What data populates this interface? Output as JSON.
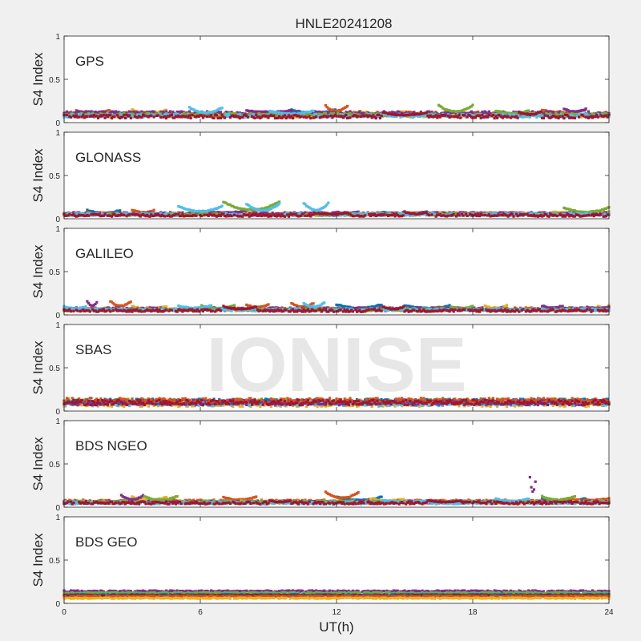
{
  "figure": {
    "title": "HNLE20241208",
    "watermark": "IONISE",
    "xlabel": "UT(h)"
  },
  "chart_data": [
    {
      "type": "scatter",
      "panel_label": "GPS",
      "ylabel": "S4 Index",
      "xlim": [
        0,
        24
      ],
      "ylim": [
        0,
        1
      ],
      "x_ticks": [
        "0",
        "6",
        "12",
        "18",
        "24"
      ],
      "y_ticks": [
        "0",
        "0.5",
        "1"
      ],
      "grid": false,
      "colors": [
        "#0072BD",
        "#D95319",
        "#EDB120",
        "#7E2F8E",
        "#77AC30",
        "#4DBEEE",
        "#A2142F"
      ],
      "series": [
        {
          "color": "#0072BD",
          "baseline": 0.09,
          "noise": 0.02,
          "arcs": [
            [
              2,
              4,
              0.13
            ],
            [
              10,
              12,
              0.15
            ]
          ]
        },
        {
          "color": "#D95319",
          "baseline": 0.1,
          "noise": 0.025,
          "arcs": [
            [
              0.5,
              2,
              0.14
            ],
            [
              11.5,
              12.5,
              0.2
            ],
            [
              21,
              23,
              0.15
            ]
          ]
        },
        {
          "color": "#EDB120",
          "baseline": 0.08,
          "noise": 0.02,
          "arcs": [
            [
              3,
              4.5,
              0.15
            ],
            [
              13,
              15,
              0.13
            ]
          ]
        },
        {
          "color": "#7E2F8E",
          "baseline": 0.11,
          "noise": 0.02,
          "arcs": [
            [
              8,
              10,
              0.14
            ],
            [
              22,
              23,
              0.16
            ]
          ]
        },
        {
          "color": "#77AC30",
          "baseline": 0.09,
          "noise": 0.02,
          "arcs": [
            [
              16.5,
              18,
              0.2
            ],
            [
              19,
              20.5,
              0.14
            ]
          ]
        },
        {
          "color": "#4DBEEE",
          "baseline": 0.08,
          "noise": 0.02,
          "arcs": [
            [
              5.5,
              7,
              0.18
            ],
            [
              9,
              11,
              0.14
            ]
          ]
        },
        {
          "color": "#A2142F",
          "baseline": 0.07,
          "noise": 0.02,
          "arcs": [
            [
              14,
              16,
              0.12
            ],
            [
              20,
              21,
              0.13
            ]
          ]
        }
      ]
    },
    {
      "type": "scatter",
      "panel_label": "GLONASS",
      "ylabel": "S4 Index",
      "xlim": [
        0,
        24
      ],
      "ylim": [
        0,
        1
      ],
      "x_ticks": [
        "0",
        "6",
        "12",
        "18",
        "24"
      ],
      "y_ticks": [
        "0",
        "0.5",
        "1"
      ],
      "grid": false,
      "colors": [
        "#0072BD",
        "#D95319",
        "#EDB120",
        "#7E2F8E",
        "#77AC30",
        "#4DBEEE",
        "#A2142F"
      ],
      "series": [
        {
          "color": "#0072BD",
          "baseline": 0.05,
          "noise": 0.015,
          "arcs": [
            [
              1,
              2.5,
              0.1
            ],
            [
              14,
              16,
              0.08
            ]
          ]
        },
        {
          "color": "#D95319",
          "baseline": 0.06,
          "noise": 0.015,
          "arcs": [
            [
              3,
              4,
              0.1
            ],
            [
              17,
              19,
              0.07
            ]
          ]
        },
        {
          "color": "#EDB120",
          "baseline": 0.05,
          "noise": 0.015,
          "arcs": [
            [
              18,
              20,
              0.06
            ],
            [
              21.5,
              24,
              0.08
            ]
          ]
        },
        {
          "color": "#7E2F8E",
          "baseline": 0.06,
          "noise": 0.015,
          "arcs": [
            [
              6,
              8,
              0.09
            ],
            [
              12,
              13,
              0.08
            ]
          ]
        },
        {
          "color": "#77AC30",
          "baseline": 0.05,
          "noise": 0.015,
          "arcs": [
            [
              7,
              9.5,
              0.2
            ],
            [
              22,
              24,
              0.13
            ]
          ]
        },
        {
          "color": "#4DBEEE",
          "baseline": 0.05,
          "noise": 0.015,
          "arcs": [
            [
              5,
              7,
              0.15
            ],
            [
              8,
              9.5,
              0.18
            ],
            [
              10.5,
              11.7,
              0.2
            ]
          ]
        },
        {
          "color": "#A2142F",
          "baseline": 0.04,
          "noise": 0.015,
          "arcs": [
            [
              11,
              12.5,
              0.07
            ],
            [
              15,
              16,
              0.08
            ]
          ]
        }
      ]
    },
    {
      "type": "scatter",
      "panel_label": "GALILEO",
      "ylabel": "S4 Index",
      "xlim": [
        0,
        24
      ],
      "ylim": [
        0,
        1
      ],
      "x_ticks": [
        "0",
        "6",
        "12",
        "18",
        "24"
      ],
      "y_ticks": [
        "0",
        "0.5",
        "1"
      ],
      "grid": false,
      "colors": [
        "#0072BD",
        "#D95319",
        "#EDB120",
        "#7E2F8E",
        "#77AC30",
        "#4DBEEE",
        "#A2142F"
      ],
      "series": [
        {
          "color": "#0072BD",
          "baseline": 0.06,
          "noise": 0.015,
          "arcs": [
            [
              12,
              14,
              0.12
            ],
            [
              15,
              17,
              0.11
            ]
          ]
        },
        {
          "color": "#D95319",
          "baseline": 0.07,
          "noise": 0.015,
          "arcs": [
            [
              2,
              3,
              0.17
            ],
            [
              8,
              9,
              0.12
            ],
            [
              10,
              11,
              0.14
            ]
          ]
        },
        {
          "color": "#EDB120",
          "baseline": 0.06,
          "noise": 0.015,
          "arcs": [
            [
              3,
              4.5,
              0.1
            ],
            [
              18.5,
              19.5,
              0.11
            ],
            [
              23.5,
              24,
              0.11
            ]
          ]
        },
        {
          "color": "#7E2F8E",
          "baseline": 0.07,
          "noise": 0.015,
          "arcs": [
            [
              1,
              1.5,
              0.17
            ],
            [
              21,
              22,
              0.11
            ],
            [
              23,
              24,
              0.09
            ]
          ]
        },
        {
          "color": "#77AC30",
          "baseline": 0.06,
          "noise": 0.015,
          "arcs": [
            [
              6,
              7.5,
              0.11
            ],
            [
              17,
              18,
              0.1
            ]
          ]
        },
        {
          "color": "#4DBEEE",
          "baseline": 0.06,
          "noise": 0.015,
          "arcs": [
            [
              0,
              1,
              0.1
            ],
            [
              5,
              6.5,
              0.11
            ],
            [
              10.5,
              11.5,
              0.15
            ]
          ]
        },
        {
          "color": "#A2142F",
          "baseline": 0.05,
          "noise": 0.015,
          "arcs": [
            [
              7,
              8.5,
              0.1
            ],
            [
              14,
              15,
              0.1
            ]
          ]
        }
      ]
    },
    {
      "type": "scatter",
      "panel_label": "SBAS",
      "ylabel": "S4 Index",
      "xlim": [
        0,
        24
      ],
      "ylim": [
        0,
        1
      ],
      "x_ticks": [
        "0",
        "6",
        "12",
        "18",
        "24"
      ],
      "y_ticks": [
        "0",
        "0.5",
        "1"
      ],
      "grid": false,
      "colors": [
        "#0072BD",
        "#D95319",
        "#EDB120",
        "#7E2F8E",
        "#77AC30",
        "#4DBEEE",
        "#A2142F"
      ],
      "series": [
        {
          "color": "#EDB120",
          "baseline": 0.08,
          "noise": 0.03,
          "arcs": []
        },
        {
          "color": "#77AC30",
          "baseline": 0.11,
          "noise": 0.03,
          "arcs": []
        },
        {
          "color": "#4DBEEE",
          "baseline": 0.09,
          "noise": 0.03,
          "arcs": []
        },
        {
          "color": "#0072BD",
          "baseline": 0.11,
          "noise": 0.03,
          "arcs": []
        },
        {
          "color": "#7E2F8E",
          "baseline": 0.1,
          "noise": 0.03,
          "arcs": []
        },
        {
          "color": "#D95319",
          "baseline": 0.12,
          "noise": 0.03,
          "arcs": []
        },
        {
          "color": "#A2142F",
          "baseline": 0.1,
          "noise": 0.03,
          "arcs": []
        }
      ]
    },
    {
      "type": "scatter",
      "panel_label": "BDS NGEO",
      "ylabel": "S4 Index",
      "xlim": [
        0,
        24
      ],
      "ylim": [
        0,
        1
      ],
      "x_ticks": [
        "0",
        "6",
        "12",
        "18",
        "24"
      ],
      "y_ticks": [
        "0",
        "0.5",
        "1"
      ],
      "grid": false,
      "colors": [
        "#0072BD",
        "#D95319",
        "#EDB120",
        "#7E2F8E",
        "#77AC30",
        "#4DBEEE",
        "#A2142F"
      ],
      "series": [
        {
          "color": "#0072BD",
          "baseline": 0.06,
          "noise": 0.015,
          "arcs": [
            [
              12,
              14,
              0.12
            ],
            [
              21,
              23,
              0.1
            ]
          ]
        },
        {
          "color": "#D95319",
          "baseline": 0.07,
          "noise": 0.015,
          "arcs": [
            [
              7,
              8.5,
              0.12
            ],
            [
              11.5,
              13,
              0.18
            ],
            [
              22,
              24,
              0.1
            ]
          ]
        },
        {
          "color": "#EDB120",
          "baseline": 0.06,
          "noise": 0.015,
          "arcs": [
            [
              3,
              4.5,
              0.12
            ],
            [
              13.5,
              15,
              0.1
            ]
          ]
        },
        {
          "color": "#7E2F8E",
          "baseline": 0.06,
          "noise": 0.015,
          "arcs": [
            [
              2.5,
              3.5,
              0.14
            ],
            [
              20.5,
              20.8,
              0.4
            ]
          ]
        },
        {
          "color": "#77AC30",
          "baseline": 0.06,
          "noise": 0.015,
          "arcs": [
            [
              3.5,
              5,
              0.13
            ],
            [
              21,
              22.5,
              0.13
            ]
          ]
        },
        {
          "color": "#4DBEEE",
          "baseline": 0.05,
          "noise": 0.015,
          "arcs": [
            [
              14,
              16,
              0.08
            ],
            [
              19,
              20.5,
              0.1
            ]
          ]
        },
        {
          "color": "#A2142F",
          "baseline": 0.05,
          "noise": 0.015,
          "arcs": [
            [
              9,
              10,
              0.08
            ],
            [
              16,
              17.5,
              0.08
            ]
          ]
        }
      ]
    },
    {
      "type": "scatter",
      "panel_label": "BDS GEO",
      "ylabel": "S4 Index",
      "xlim": [
        0,
        24
      ],
      "ylim": [
        0,
        1
      ],
      "x_ticks": [
        "0",
        "6",
        "12",
        "18",
        "24"
      ],
      "y_ticks": [
        "0",
        "0.5",
        "1"
      ],
      "grid": false,
      "colors": [
        "#0072BD",
        "#D95319",
        "#EDB120",
        "#7E2F8E",
        "#77AC30",
        "#4DBEEE",
        "#A2142F"
      ],
      "series": [
        {
          "color": "#7E2F8E",
          "baseline": 0.14,
          "noise": 0.008,
          "arcs": []
        },
        {
          "color": "#77AC30",
          "baseline": 0.12,
          "noise": 0.008,
          "arcs": []
        },
        {
          "color": "#0072BD",
          "baseline": 0.1,
          "noise": 0.006,
          "arcs": []
        },
        {
          "color": "#A2142F",
          "baseline": 0.09,
          "noise": 0.006,
          "arcs": []
        },
        {
          "color": "#D95319",
          "baseline": 0.08,
          "noise": 0.006,
          "arcs": []
        },
        {
          "color": "#EDB120",
          "baseline": 0.06,
          "noise": 0.006,
          "arcs": []
        }
      ]
    }
  ]
}
